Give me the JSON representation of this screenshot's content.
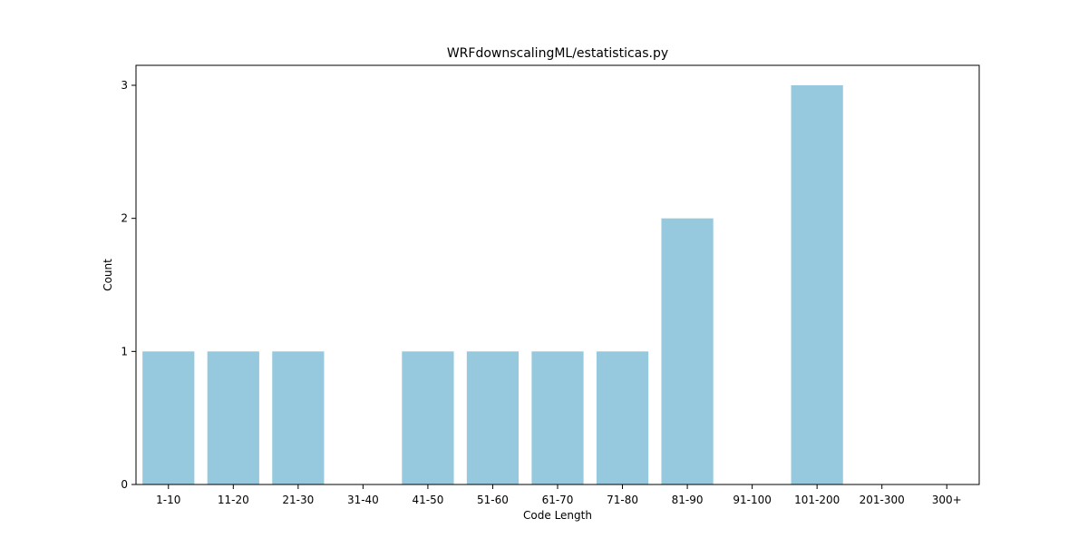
{
  "chart_data": {
    "type": "bar",
    "title": "WRFdownscalingML/estatisticas.py",
    "xlabel": "Code Length",
    "ylabel": "Count",
    "categories": [
      "1-10",
      "11-20",
      "21-30",
      "31-40",
      "41-50",
      "51-60",
      "61-70",
      "71-80",
      "81-90",
      "91-100",
      "101-200",
      "201-300",
      "300+"
    ],
    "values": [
      1,
      1,
      1,
      0,
      1,
      1,
      1,
      1,
      2,
      0,
      3,
      0,
      0
    ],
    "ylim": [
      0,
      3.15
    ],
    "yticks": [
      0,
      1,
      2,
      3
    ],
    "grid": false,
    "legend": "none",
    "bar_color": "#96c9dd",
    "axis_color": "#000000"
  }
}
